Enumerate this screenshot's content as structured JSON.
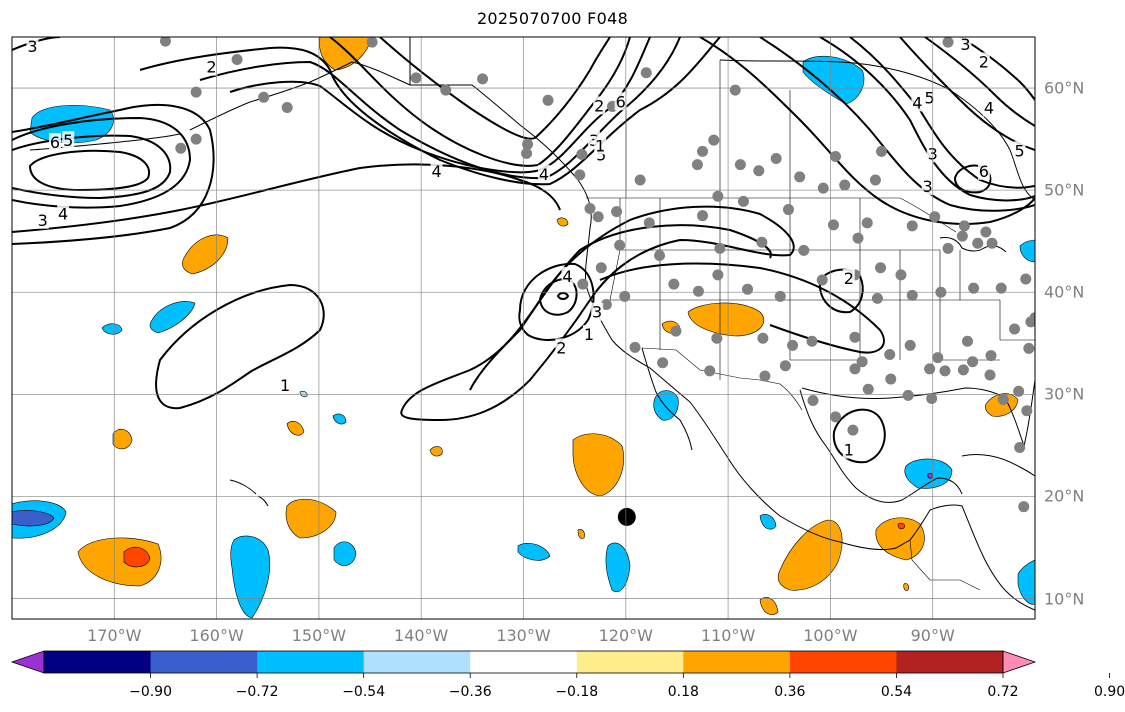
{
  "title": "2025070700 F048",
  "map": {
    "extent": {
      "lon_min": -180,
      "lon_max": -80,
      "lat_min": 8,
      "lat_max": 65
    },
    "projection": "plate carree",
    "grid": true,
    "lon_ticks": [
      {
        "value": -170,
        "label": "170°W"
      },
      {
        "value": -160,
        "label": "160°W"
      },
      {
        "value": -150,
        "label": "150°W"
      },
      {
        "value": -140,
        "label": "140°W"
      },
      {
        "value": -130,
        "label": "130°W"
      },
      {
        "value": -120,
        "label": "120°W"
      },
      {
        "value": -110,
        "label": "110°W"
      },
      {
        "value": -100,
        "label": "100°W"
      },
      {
        "value": -90,
        "label": "90°W"
      }
    ],
    "lat_ticks": [
      {
        "value": 60,
        "label": "60°N"
      },
      {
        "value": 50,
        "label": "50°N"
      },
      {
        "value": 40,
        "label": "40°N"
      },
      {
        "value": 30,
        "label": "30°N"
      },
      {
        "value": 20,
        "label": "20°N"
      },
      {
        "value": 10,
        "label": "10°N"
      }
    ],
    "center_marker": {
      "lon": -119.9,
      "lat": 18.0,
      "color": "#000000"
    },
    "station_color": "#808080",
    "stations": [
      [
        -165,
        64.6
      ],
      [
        -158,
        62.8
      ],
      [
        -162,
        59.6
      ],
      [
        -155.4,
        59.1
      ],
      [
        -153.1,
        58.1
      ],
      [
        -162,
        55.0
      ],
      [
        -163.5,
        54.1
      ],
      [
        -144.8,
        64.5
      ],
      [
        -140.5,
        61.0
      ],
      [
        -137.6,
        59.8
      ],
      [
        -134,
        60.9
      ],
      [
        -127.6,
        58.8
      ],
      [
        -121.3,
        58.2
      ],
      [
        -118,
        61.5
      ],
      [
        -109.3,
        59.8
      ],
      [
        -129.6,
        54.5
      ],
      [
        -129.7,
        53.6
      ],
      [
        -124.3,
        53.5
      ],
      [
        -124.5,
        51.5
      ],
      [
        -118.6,
        51.0
      ],
      [
        -113,
        52.5
      ],
      [
        -112.5,
        53.8
      ],
      [
        -111.4,
        54.9
      ],
      [
        -108.8,
        52.5
      ],
      [
        -107,
        51.9
      ],
      [
        -105.3,
        53.1
      ],
      [
        -103,
        51.3
      ],
      [
        -100.7,
        50.2
      ],
      [
        -98.6,
        50.5
      ],
      [
        -99.5,
        53.3
      ],
      [
        -95.6,
        51.0
      ],
      [
        -95,
        53.8
      ],
      [
        -88.5,
        64.5
      ],
      [
        -123.5,
        48.2
      ],
      [
        -122.7,
        47.4
      ],
      [
        -120.9,
        47.9
      ],
      [
        -117.7,
        46.8
      ],
      [
        -116.7,
        43.6
      ],
      [
        -112.5,
        47.5
      ],
      [
        -111,
        49.4
      ],
      [
        -108.5,
        48.9
      ],
      [
        -104.1,
        48.1
      ],
      [
        -99.7,
        46.6
      ],
      [
        -96.4,
        46.8
      ],
      [
        -92,
        46.5
      ],
      [
        -89.8,
        47.4
      ],
      [
        -86.9,
        46.5
      ],
      [
        -84.8,
        45.9
      ],
      [
        -110.8,
        44.3
      ],
      [
        -106.7,
        44.9
      ],
      [
        -102.6,
        44.1
      ],
      [
        -97.3,
        45.3
      ],
      [
        -88.5,
        44.3
      ],
      [
        -84.2,
        44.8
      ],
      [
        -87.1,
        45.5
      ],
      [
        -85.6,
        44.8
      ],
      [
        -122.4,
        42.4
      ],
      [
        -120.6,
        44.6
      ],
      [
        -124.2,
        40.8
      ],
      [
        -121.9,
        38.8
      ],
      [
        -120.1,
        39.6
      ],
      [
        -115.3,
        40.8
      ],
      [
        -112.9,
        40.1
      ],
      [
        -111,
        41.7
      ],
      [
        -108.1,
        40.3
      ],
      [
        -104.9,
        39.6
      ],
      [
        -100.8,
        41.2
      ],
      [
        -97.6,
        41.7
      ],
      [
        -95.4,
        39.4
      ],
      [
        -92,
        39.7
      ],
      [
        -89.2,
        40.0
      ],
      [
        -86,
        40.4
      ],
      [
        -83.3,
        40.4
      ],
      [
        -80.9,
        41.3
      ],
      [
        -119.1,
        34.6
      ],
      [
        -116.4,
        33.1
      ],
      [
        -115.1,
        36.2
      ],
      [
        -111.1,
        35.5
      ],
      [
        -111.8,
        32.3
      ],
      [
        -106.6,
        35.5
      ],
      [
        -106.4,
        31.8
      ],
      [
        -103.7,
        34.8
      ],
      [
        -101.8,
        35.2
      ],
      [
        -97.6,
        35.6
      ],
      [
        -96.9,
        33.2
      ],
      [
        -97.6,
        32.5
      ],
      [
        -96.3,
        30.5
      ],
      [
        -94.2,
        33.9
      ],
      [
        -92.2,
        34.8
      ],
      [
        -89.5,
        33.6
      ],
      [
        -86.6,
        35.2
      ],
      [
        -86.1,
        33.2
      ],
      [
        -84.3,
        33.8
      ],
      [
        -83.1,
        29.5
      ],
      [
        -81.6,
        30.3
      ],
      [
        -80.8,
        28.4
      ],
      [
        -81.5,
        24.8
      ],
      [
        -81.1,
        19.0
      ],
      [
        -90.1,
        29.6
      ],
      [
        -92.4,
        29.9
      ],
      [
        -94.1,
        31.5
      ],
      [
        -90.3,
        32.5
      ],
      [
        -101.7,
        29.4
      ],
      [
        -104.4,
        32.8
      ],
      [
        -99.5,
        27.8
      ],
      [
        -97.8,
        26.5
      ],
      [
        -88.8,
        32.3
      ],
      [
        -87,
        32.4
      ],
      [
        -82,
        36.4
      ],
      [
        -80.4,
        37.1
      ],
      [
        -80.6,
        34.5
      ],
      [
        -80,
        37.5
      ],
      [
        -84.4,
        31.9
      ],
      [
        -95.1,
        42.4
      ],
      [
        -93.1,
        41.7
      ]
    ]
  },
  "colorbar": {
    "levels": [
      -0.9,
      -0.72,
      -0.54,
      -0.36,
      -0.18,
      0.18,
      0.36,
      0.54,
      0.72,
      0.9
    ],
    "labels": [
      "−0.90",
      "−0.72",
      "−0.54",
      "−0.36",
      "−0.18",
      "0.18",
      "0.36",
      "0.54",
      "0.72",
      "0.90"
    ],
    "colors": [
      "#9b30d4",
      "#000080",
      "#3a5fcd",
      "#00bfff",
      "#b0e2ff",
      "#ffffff",
      "#ffec8b",
      "#ffa500",
      "#ff4500",
      "#b22222",
      "#ff8cb4"
    ],
    "extend": "both"
  },
  "contours": {
    "color": "#000000",
    "labels": [
      {
        "text": "3",
        "lon": -178,
        "lat": 64.0
      },
      {
        "text": "2",
        "lon": -160.5,
        "lat": 62.0
      },
      {
        "text": "5",
        "lon": -174.5,
        "lat": 54.8
      },
      {
        "text": "6",
        "lon": -175.8,
        "lat": 54.6
      },
      {
        "text": "3",
        "lon": -177,
        "lat": 47.0
      },
      {
        "text": "4",
        "lon": -175,
        "lat": 47.6
      },
      {
        "text": "4",
        "lon": -138.5,
        "lat": 51.8
      },
      {
        "text": "2",
        "lon": -122.6,
        "lat": 58.2
      },
      {
        "text": "6",
        "lon": -120.5,
        "lat": 58.6
      },
      {
        "text": "3",
        "lon": -123.1,
        "lat": 54.8
      },
      {
        "text": "5",
        "lon": -122.4,
        "lat": 53.4
      },
      {
        "text": "1",
        "lon": -122.5,
        "lat": 54.3
      },
      {
        "text": "4",
        "lon": -128,
        "lat": 51.5
      },
      {
        "text": "4",
        "lon": -125.7,
        "lat": 41.5
      },
      {
        "text": "3",
        "lon": -122.8,
        "lat": 38.0
      },
      {
        "text": "2",
        "lon": -126.3,
        "lat": 34.5
      },
      {
        "text": "1",
        "lon": -123.6,
        "lat": 35.8
      },
      {
        "text": "1",
        "lon": -153.3,
        "lat": 30.8
      },
      {
        "text": "2",
        "lon": -98.2,
        "lat": 41.3
      },
      {
        "text": "1",
        "lon": -98.2,
        "lat": 24.5
      },
      {
        "text": "4",
        "lon": -91.5,
        "lat": 58.5
      },
      {
        "text": "5",
        "lon": -90.3,
        "lat": 59.0
      },
      {
        "text": "4",
        "lon": -84.5,
        "lat": 58.0
      },
      {
        "text": "3",
        "lon": -90,
        "lat": 53.5
      },
      {
        "text": "3",
        "lon": -90.5,
        "lat": 50.3
      },
      {
        "text": "6",
        "lon": -85,
        "lat": 51.8
      },
      {
        "text": "5",
        "lon": -81.5,
        "lat": 53.8
      },
      {
        "text": "3",
        "lon": -86.8,
        "lat": 64.2
      },
      {
        "text": "2",
        "lon": -85,
        "lat": 62.5
      }
    ]
  }
}
